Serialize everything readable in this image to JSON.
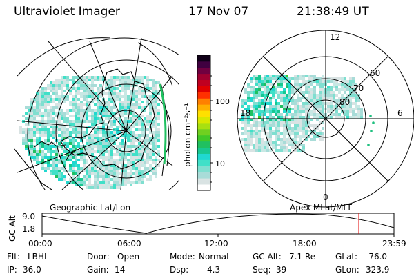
{
  "header": {
    "title": "Ultraviolet Imager",
    "date": "17 Nov 07",
    "time": "21:38:49 UT"
  },
  "colorbar": {
    "label": "photon cm⁻²s⁻¹",
    "ticks": [
      "100",
      "10"
    ],
    "colors": [
      "#ffffff",
      "#d9e3e3",
      "#a8dcd8",
      "#7fdfd0",
      "#40e0c8",
      "#20d8d0",
      "#18c890",
      "#20c060",
      "#40c828",
      "#70d020",
      "#a8e010",
      "#d8e800",
      "#ffe000",
      "#ffb000",
      "#ff8000",
      "#ff3000",
      "#e00000",
      "#c00020",
      "#a00030",
      "#700040",
      "#400040",
      "#100018"
    ]
  },
  "geo_map": {
    "label": "Geographic Lat/Lon"
  },
  "apex_map": {
    "label": "Apex MLat/MLT",
    "mlt_labels": [
      "12",
      "18",
      "6",
      "0"
    ],
    "lat_labels": [
      "60",
      "70",
      "80"
    ]
  },
  "altitude_plot": {
    "ylabel": "GC Alt",
    "yticks": [
      "9.0",
      "1.8"
    ],
    "xticks": [
      "00:00",
      "06:00",
      "12:00",
      "18:00",
      "23:59"
    ],
    "marker_time": "21:38:49"
  },
  "footer": {
    "row1": [
      {
        "key": "Flt:",
        "value": "LBHL"
      },
      {
        "key": "Door:",
        "value": "Open"
      },
      {
        "key": "Mode:",
        "value": "Normal"
      },
      {
        "key": "GC Alt:",
        "value": "7.1 Re"
      },
      {
        "key": "GLat:",
        "value": "-76.0"
      }
    ],
    "row2": [
      {
        "key": "IP:",
        "value": "36.0"
      },
      {
        "key": "Gain:",
        "value": "14"
      },
      {
        "key": "Dsp:",
        "value": "4.3"
      },
      {
        "key": "Seq:",
        "value": "39"
      },
      {
        "key": "GLon:",
        "value": "323.9"
      }
    ]
  }
}
